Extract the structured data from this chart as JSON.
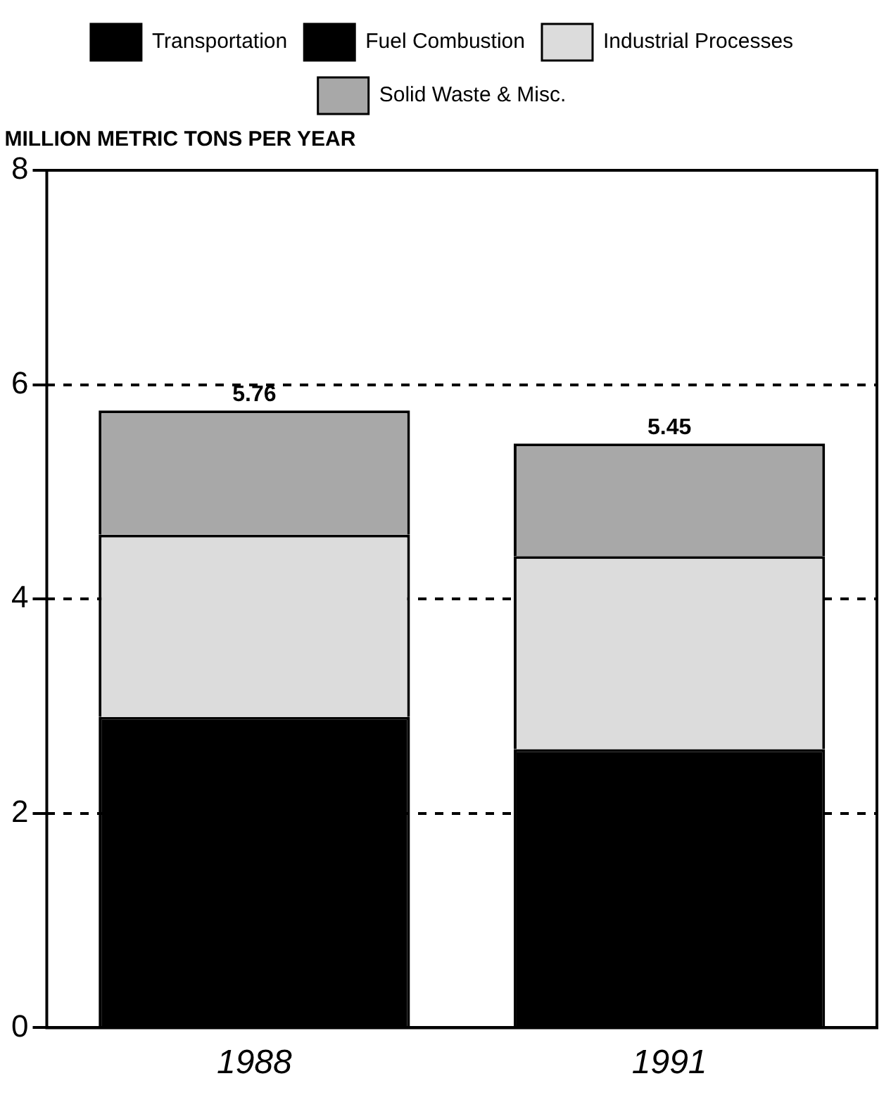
{
  "chart_data": {
    "type": "bar",
    "ylabel": "MILLION METRIC TONS PER YEAR",
    "categories": [
      "1988",
      "1991"
    ],
    "stacked": true,
    "series": [
      {
        "name": "Transportation",
        "color": "#000000",
        "values": [
          2.9,
          2.6
        ]
      },
      {
        "name": "Fuel Combustion",
        "color": "#000000",
        "values": [
          null,
          null
        ]
      },
      {
        "name": "Industrial Processes",
        "color": "#dcdcdc",
        "values": [
          1.7,
          1.8
        ]
      },
      {
        "name": "Solid Waste & Misc.",
        "color": "#a8a8a8",
        "values": [
          1.16,
          1.05
        ]
      }
    ],
    "totals": [
      "5.76",
      "5.45"
    ],
    "ylim": [
      0,
      8
    ],
    "yticks": [
      0,
      2,
      4,
      6,
      8
    ],
    "grid": "y",
    "legend": "top"
  }
}
